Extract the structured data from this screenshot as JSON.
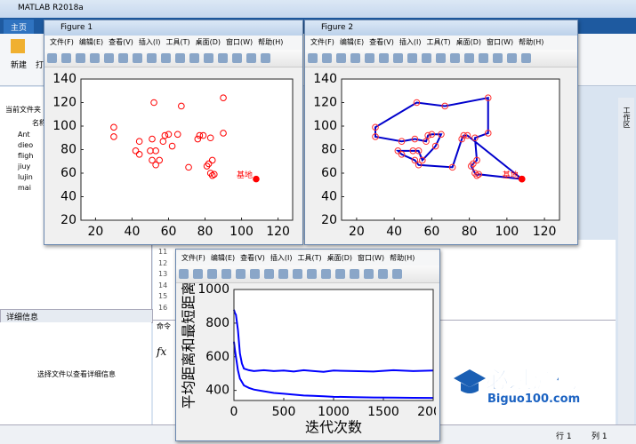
{
  "app": {
    "title": "MATLAB R2018a",
    "tab": "主页",
    "ribbon": [
      "新建",
      "打"
    ],
    "current_folder": "当前文件夹",
    "name_header": "名称",
    "files": [
      "Ant",
      "dieo",
      "fligh",
      "jiuy",
      "lujin",
      "mai"
    ],
    "details_title": "详细信息",
    "details_hint": "选择文件以查看详细信息",
    "line_numbers": [
      "11",
      "12",
      "13",
      "14",
      "15",
      "16"
    ],
    "command": "命令",
    "fx": "fx",
    "side_tab": "工作区",
    "status": [
      "行 1",
      "列 1"
    ]
  },
  "figures": [
    {
      "title": "Figure 1"
    },
    {
      "title": "Figure 2"
    }
  ],
  "menu": [
    "文件(F)",
    "编辑(E)",
    "查看(V)",
    "插入(I)",
    "工具(T)",
    "桌面(D)",
    "窗口(W)",
    "帮助(H)"
  ],
  "watermark": {
    "text": "必过源码",
    "url": "Biguo100.com"
  },
  "chart_data": [
    {
      "type": "scatter",
      "xlim": [
        12,
        128
      ],
      "ylim": [
        20,
        140
      ],
      "xticks": [
        20,
        40,
        60,
        80,
        100,
        120
      ],
      "yticks": [
        20,
        40,
        60,
        80,
        100,
        120,
        140
      ],
      "series": [
        {
          "color": "#ff0000",
          "marker": "o",
          "x": [
            30,
            30,
            44,
            42,
            44,
            52,
            51,
            50,
            53,
            51,
            53,
            55,
            57,
            58,
            60,
            65,
            62,
            67,
            71,
            77,
            76,
            79,
            83,
            82,
            81,
            84,
            83,
            85,
            84,
            90,
            90
          ],
          "values": [
            99,
            91,
            87,
            79,
            76,
            120,
            89,
            79,
            79,
            71,
            67,
            71,
            87,
            92,
            93,
            93,
            83,
            117,
            65,
            92,
            89,
            92,
            90,
            68,
            66,
            71,
            60,
            59,
            58,
            124,
            94
          ]
        },
        {
          "color": "#ff0000",
          "marker": "o",
          "filled": true,
          "label": "基地",
          "x": [
            108
          ],
          "values": [
            55
          ]
        }
      ]
    },
    {
      "type": "line",
      "xlim": [
        12,
        128
      ],
      "ylim": [
        20,
        140
      ],
      "xticks": [
        20,
        40,
        60,
        80,
        100,
        120
      ],
      "yticks": [
        20,
        40,
        60,
        80,
        100,
        120,
        140
      ],
      "series": [
        {
          "color": "#0000cc",
          "line": true,
          "marker": "o",
          "marker_color": "#ff3030",
          "x": [
            108,
            85,
            84,
            83,
            81,
            82,
            84,
            83,
            90,
            90,
            67,
            52,
            30,
            30,
            44,
            51,
            57,
            58,
            60,
            65,
            62,
            55,
            53,
            50,
            42,
            44,
            51,
            53,
            71,
            76,
            77,
            79,
            108
          ],
          "values": [
            55,
            59,
            58,
            60,
            66,
            68,
            71,
            90,
            94,
            124,
            117,
            120,
            99,
            91,
            87,
            89,
            87,
            92,
            93,
            93,
            83,
            71,
            79,
            79,
            79,
            76,
            71,
            67,
            65,
            89,
            92,
            92,
            55
          ]
        },
        {
          "color": "#ff0000",
          "marker": "o",
          "filled": true,
          "label": "基地",
          "x": [
            108
          ],
          "values": [
            55
          ]
        }
      ]
    },
    {
      "type": "line",
      "xlim": [
        0,
        2000
      ],
      "ylim": [
        340,
        1000
      ],
      "xticks": [
        0,
        500,
        1000,
        1500,
        2000
      ],
      "yticks": [
        400,
        600,
        800,
        1000
      ],
      "xlabel": "迭代次数",
      "ylabel": "平均距离和最短距离",
      "series": [
        {
          "color": "#0000ff",
          "line": true,
          "x": [
            0,
            10,
            20,
            40,
            60,
            80,
            100,
            150,
            200,
            300,
            400,
            500,
            600,
            700,
            800,
            900,
            1000,
            1200,
            1400,
            1600,
            1800,
            2000
          ],
          "values": [
            880,
            860,
            850,
            760,
            620,
            560,
            530,
            520,
            515,
            520,
            515,
            518,
            512,
            520,
            515,
            510,
            518,
            515,
            512,
            520,
            515,
            518
          ]
        },
        {
          "color": "#0000ff",
          "line": true,
          "x": [
            0,
            10,
            20,
            40,
            60,
            80,
            100,
            150,
            200,
            300,
            400,
            500,
            600,
            700,
            800,
            900,
            1000,
            1200,
            1400,
            1600,
            1800,
            2000
          ],
          "values": [
            690,
            640,
            600,
            520,
            470,
            450,
            430,
            415,
            405,
            395,
            385,
            380,
            375,
            370,
            368,
            365,
            362,
            360,
            358,
            357,
            356,
            355
          ]
        }
      ]
    }
  ]
}
